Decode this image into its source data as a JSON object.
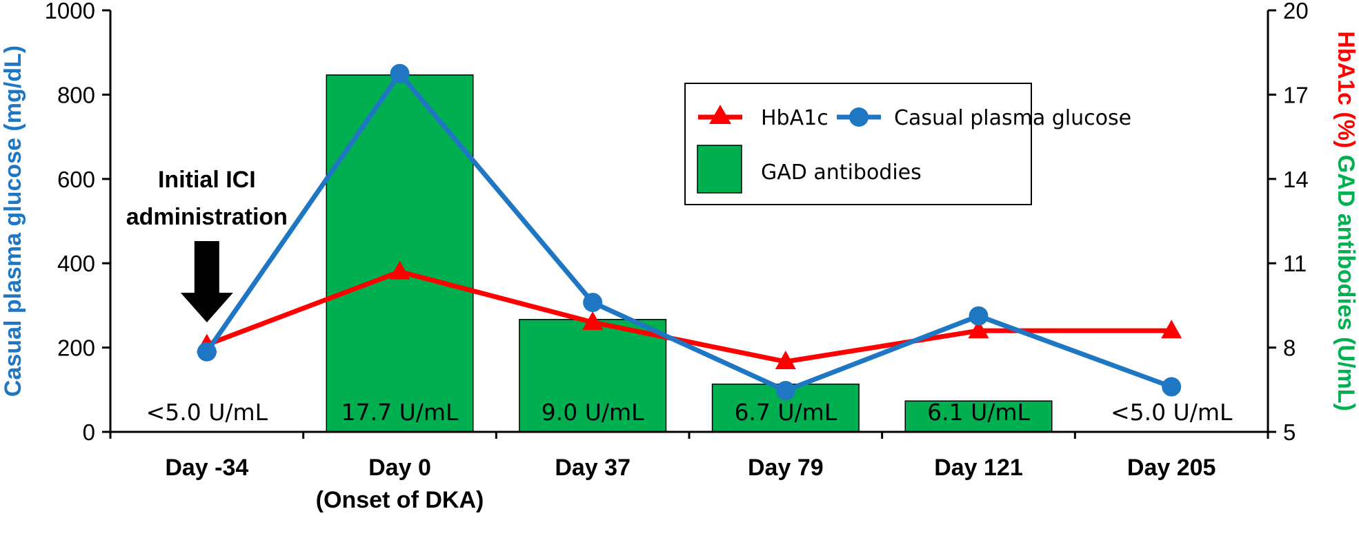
{
  "chart_data": {
    "type": "bar+line",
    "categories": [
      "Day -34",
      "Day 0",
      "Day 37",
      "Day 79",
      "Day 121",
      "Day 205"
    ],
    "category_sublabels": [
      "",
      "(Onset of DKA)",
      "",
      "",
      "",
      ""
    ],
    "left_axis": {
      "label": "Casual plasma glucose (mg/dL)",
      "ylim": [
        0,
        1000
      ],
      "ticks": [
        0,
        200,
        400,
        600,
        800,
        1000
      ],
      "color": "#1f77c4"
    },
    "right_axis": {
      "label_part1": "HbA1c (%)",
      "label_part1_color": "#ff0000",
      "label_part2": "GAD antibodies (U/mL)",
      "label_part2_color": "#00b050",
      "ylim": [
        5,
        20
      ],
      "ticks": [
        5,
        8,
        11,
        14,
        17,
        20
      ]
    },
    "series": [
      {
        "name": "GAD antibodies",
        "kind": "bar",
        "axis": "right",
        "color": "#00b050",
        "values": [
          null,
          17.7,
          9.0,
          6.7,
          6.1,
          null
        ],
        "labels": [
          "<5.0 U/mL",
          "17.7 U/mL",
          "9.0 U/mL",
          "6.7 U/mL",
          "6.1 U/mL",
          "<5.0 U/mL"
        ]
      },
      {
        "name": "HbA1c",
        "kind": "line",
        "marker": "triangle",
        "axis": "right",
        "color": "#ff0000",
        "values": [
          8.1,
          10.7,
          8.9,
          7.5,
          8.6,
          8.6
        ]
      },
      {
        "name": "Casual plasma glucose",
        "kind": "line",
        "marker": "circle",
        "axis": "left",
        "color": "#1f77c4",
        "values": [
          190,
          850,
          307,
          98,
          275,
          107
        ]
      }
    ],
    "legend": {
      "placement": "top-right",
      "entries": [
        "HbA1c",
        "Casual plasma glucose",
        "GAD antibodies"
      ]
    },
    "annotation": {
      "line1": "Initial ICI",
      "line2": "administration",
      "category": "Day -34",
      "arrow": "down"
    },
    "grid": false
  }
}
